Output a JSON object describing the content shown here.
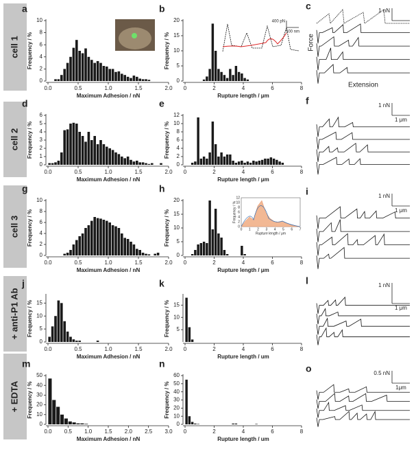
{
  "row_labels": [
    "cell 1",
    "cell 2",
    "cell 3",
    "+ anti-P1 Ab",
    "+ EDTA"
  ],
  "chart_data": [
    {
      "type": "histogram",
      "panel": "a",
      "color": "#1a1a1a",
      "xlabel": "Maximum Adhesion / nN",
      "ylabel": "Frequency / %",
      "bins": [
        0,
        0.05,
        0.1,
        0.15,
        0.2,
        0.25,
        0.3,
        0.35,
        0.4,
        0.45,
        0.5,
        0.55,
        0.6,
        0.65,
        0.7,
        0.75,
        0.8,
        0.85,
        0.9,
        0.95,
        1,
        1.05,
        1.1,
        1.15,
        1.2,
        1.25,
        1.3,
        1.35,
        1.4,
        1.45,
        1.5,
        1.55,
        1.6,
        1.65,
        1.7,
        1.75,
        1.8,
        1.85,
        1.9,
        1.95,
        2
      ],
      "values": [
        0,
        0,
        0.3,
        0.3,
        1,
        2,
        3,
        4,
        5.5,
        6.8,
        5,
        4.6,
        5.4,
        4,
        3.5,
        3,
        3.3,
        3,
        2.5,
        2.4,
        2,
        2,
        1.5,
        1.6,
        1.2,
        1,
        0.7,
        0.5,
        0.9,
        0.7,
        0.4,
        0.3,
        0.3,
        0.2,
        0,
        0,
        0,
        0,
        0,
        0
      ],
      "xlim": [
        0,
        2
      ],
      "ylim": [
        0,
        10
      ],
      "xticks": [
        {
          "value": 0,
          "label": "0.0"
        },
        0.5,
        {
          "value": 1,
          "label": "1.0"
        },
        1.5,
        {
          "value": 2,
          "label": "2.0"
        }
      ],
      "yticks": [
        0,
        2,
        4,
        6,
        8,
        10
      ]
    },
    {
      "type": "histogram",
      "panel": "b",
      "color": "#1a1a1a",
      "xlabel": "Rupture length / μm",
      "ylabel": "Frequency / %",
      "bins": [
        0,
        0.2,
        0.4,
        0.6,
        0.8,
        1,
        1.2,
        1.4,
        1.6,
        1.8,
        2,
        2.2,
        2.4,
        2.6,
        2.8,
        3,
        3.2,
        3.4,
        3.6,
        3.8,
        4,
        4.2,
        4.4,
        4.6,
        4.8,
        5,
        5.2,
        5.4,
        5.6,
        5.8,
        6,
        6.2,
        6.4,
        6.6,
        6.8,
        7,
        7.2,
        7.4,
        7.6,
        7.8,
        8
      ],
      "values": [
        0,
        0,
        0,
        0,
        0,
        0,
        0.5,
        1.5,
        4,
        19,
        10,
        4,
        3,
        2,
        1,
        4,
        2,
        5,
        3,
        2.5,
        1,
        0.5,
        0,
        0,
        0,
        0,
        0,
        0,
        0,
        0,
        0,
        0,
        0,
        0,
        0,
        0,
        0,
        0,
        0,
        0
      ],
      "xlim": [
        0,
        8
      ],
      "ylim": [
        0,
        20
      ],
      "xticks": [
        0,
        2,
        4,
        6,
        8
      ],
      "yticks": [
        0,
        5,
        10,
        15,
        20
      ],
      "inset_labels": [
        "400 pN",
        "500 nm"
      ]
    },
    {
      "type": "histogram",
      "panel": "d",
      "color": "#1a1a1a",
      "xlabel": "Maximum Adhesion / nN",
      "ylabel": "Frequency / %",
      "bins": [
        0,
        0.05,
        0.1,
        0.15,
        0.2,
        0.25,
        0.3,
        0.35,
        0.4,
        0.45,
        0.5,
        0.55,
        0.6,
        0.65,
        0.7,
        0.75,
        0.8,
        0.85,
        0.9,
        0.95,
        1,
        1.05,
        1.1,
        1.15,
        1.2,
        1.25,
        1.3,
        1.35,
        1.4,
        1.45,
        1.5,
        1.55,
        1.6,
        1.65,
        1.7,
        1.75,
        1.8,
        1.85,
        1.9,
        1.95,
        2
      ],
      "values": [
        0.2,
        0.2,
        0.3,
        0.5,
        1.5,
        4.2,
        4.3,
        5,
        5.1,
        5,
        4,
        3.5,
        2.8,
        4,
        3,
        3.5,
        2.5,
        3,
        2.5,
        2.2,
        2,
        1.8,
        1.5,
        1.3,
        1,
        0.8,
        1,
        0.6,
        0.4,
        0.5,
        0.3,
        0.3,
        0.2,
        0.1,
        0.2,
        0,
        0,
        0.2,
        0,
        0
      ],
      "xlim": [
        0,
        2
      ],
      "ylim": [
        0,
        6
      ],
      "xticks": [
        {
          "value": 0,
          "label": "0.0"
        },
        0.5,
        {
          "value": 1,
          "label": "1.0"
        },
        1.5,
        {
          "value": 2,
          "label": "2.0"
        }
      ],
      "yticks": [
        0,
        1,
        2,
        3,
        4,
        5,
        6
      ]
    },
    {
      "type": "histogram",
      "panel": "e",
      "color": "#1a1a1a",
      "xlabel": "Rupture length / μm",
      "ylabel": "Frequency / %",
      "bins": [
        0,
        0.2,
        0.4,
        0.6,
        0.8,
        1,
        1.2,
        1.4,
        1.6,
        1.8,
        2,
        2.2,
        2.4,
        2.6,
        2.8,
        3,
        3.2,
        3.4,
        3.6,
        3.8,
        4,
        4.2,
        4.4,
        4.6,
        4.8,
        5,
        5.2,
        5.4,
        5.6,
        5.8,
        6,
        6.2,
        6.4,
        6.6,
        6.8,
        7,
        7.2,
        7.4,
        7.6,
        7.8,
        8
      ],
      "values": [
        0,
        0,
        0.5,
        0.8,
        11.5,
        1.5,
        2,
        1.5,
        3,
        10.5,
        5,
        2,
        3,
        2,
        2.5,
        2.5,
        1,
        0.5,
        0.8,
        1,
        0.5,
        0.8,
        0.5,
        1,
        0.8,
        1,
        1.2,
        1.5,
        1.5,
        1.8,
        1.5,
        1.2,
        0.8,
        0.5,
        0,
        0,
        0,
        0,
        0,
        0
      ],
      "xlim": [
        0,
        8
      ],
      "ylim": [
        0,
        12
      ],
      "xticks": [
        0,
        2,
        4,
        6,
        8
      ],
      "yticks": [
        0,
        2,
        4,
        6,
        8,
        10,
        12
      ]
    },
    {
      "type": "histogram",
      "panel": "g",
      "color": "#1a1a1a",
      "xlabel": "Maximum Adhesion / nN",
      "ylabel": "Frequency / %",
      "bins": [
        0,
        0.05,
        0.1,
        0.15,
        0.2,
        0.25,
        0.3,
        0.35,
        0.4,
        0.45,
        0.5,
        0.55,
        0.6,
        0.65,
        0.7,
        0.75,
        0.8,
        0.85,
        0.9,
        0.95,
        1,
        1.05,
        1.1,
        1.15,
        1.2,
        1.25,
        1.3,
        1.35,
        1.4,
        1.45,
        1.5,
        1.55,
        1.6,
        1.65,
        1.7,
        1.75,
        1.8,
        1.85,
        1.9,
        1.95,
        2
      ],
      "values": [
        0,
        0,
        0,
        0,
        0,
        0.3,
        0.5,
        1,
        2,
        2.8,
        3.5,
        4,
        5,
        5.5,
        6.3,
        7,
        6.8,
        6.7,
        6.5,
        6.3,
        6,
        5.5,
        5.3,
        5,
        4,
        3.2,
        3,
        2.5,
        2,
        1.2,
        1,
        0.5,
        0.3,
        0.2,
        0,
        0.3,
        0.5,
        0,
        0,
        0
      ],
      "xlim": [
        0,
        2
      ],
      "ylim": [
        0,
        10
      ],
      "xticks": [
        {
          "value": 0,
          "label": "0.0"
        },
        0.5,
        {
          "value": 1,
          "label": "1.0"
        },
        1.5,
        {
          "value": 2,
          "label": "2.0"
        }
      ],
      "yticks": [
        0,
        2,
        4,
        6,
        8,
        10
      ]
    },
    {
      "type": "histogram",
      "panel": "h",
      "color": "#1a1a1a",
      "xlabel": "Rupture length / μm",
      "ylabel": "Frequency / %",
      "bins": [
        0,
        0.2,
        0.4,
        0.6,
        0.8,
        1,
        1.2,
        1.4,
        1.6,
        1.8,
        2,
        2.2,
        2.4,
        2.6,
        2.8,
        3,
        3.2,
        3.4,
        3.6,
        3.8,
        4,
        4.2,
        4.4,
        4.6,
        4.8,
        5,
        5.2,
        5.4,
        5.6,
        5.8,
        6,
        6.2,
        6.4,
        6.6,
        6.8,
        7,
        7.2,
        7.4,
        7.6,
        7.8,
        8
      ],
      "values": [
        0,
        0,
        0.5,
        2,
        4,
        4.5,
        5,
        4.5,
        20,
        9.5,
        17,
        8,
        6.5,
        2,
        0.5,
        0,
        0,
        0,
        0,
        3.5,
        0.5,
        0,
        0,
        0,
        0,
        0,
        0,
        0,
        0,
        0,
        0,
        0,
        0,
        0,
        0,
        0,
        0,
        0,
        0,
        0
      ],
      "xlim": [
        0,
        8
      ],
      "ylim": [
        0,
        20
      ],
      "xticks": [
        0,
        2,
        4,
        6,
        8
      ],
      "yticks": [
        0,
        5,
        10,
        15,
        20
      ],
      "inset": {
        "xlabel": "Rupture length / μm",
        "ylabel": "Frequency / %",
        "xlim": [
          0,
          7
        ],
        "ylim": [
          0,
          12
        ],
        "xticks": [
          0,
          1,
          2,
          3,
          4,
          5,
          6,
          7
        ],
        "yticks": [
          0,
          2,
          4,
          6,
          8,
          10,
          12
        ]
      }
    },
    {
      "type": "histogram",
      "panel": "j",
      "color": "#1a1a1a",
      "xlabel": "Maximum Adhesion / nN",
      "ylabel": "Frequency / %",
      "bins": [
        0,
        0.05,
        0.1,
        0.15,
        0.2,
        0.25,
        0.3,
        0.35,
        0.4,
        0.45,
        0.5,
        0.55,
        0.6,
        0.65,
        0.7,
        0.75,
        0.8,
        0.85,
        0.9,
        0.95,
        1,
        1.05,
        1.1,
        1.15,
        1.2,
        1.25,
        1.3,
        1.35,
        1.4,
        1.45,
        1.5,
        1.55,
        1.6,
        1.65,
        1.7,
        1.75,
        1.8,
        1.85,
        1.9,
        1.95,
        2
      ],
      "values": [
        2,
        6,
        10,
        16,
        15,
        8,
        4,
        2,
        1,
        0.5,
        0.5,
        0,
        0,
        0,
        0,
        0,
        0.5,
        0,
        0,
        0,
        0,
        0,
        0,
        0,
        0,
        0,
        0,
        0,
        0,
        0,
        0,
        0,
        0,
        0,
        0,
        0,
        0,
        0,
        0,
        0
      ],
      "xlim": [
        0,
        2
      ],
      "ylim": [
        0,
        18
      ],
      "xticks": [
        {
          "value": 0,
          "label": "0.0"
        },
        0.5,
        {
          "value": 1,
          "label": "1.0"
        },
        1.5,
        {
          "value": 2,
          "label": "2.0"
        }
      ],
      "yticks": [
        0,
        5,
        10,
        15
      ]
    },
    {
      "type": "histogram",
      "panel": "k",
      "color": "#1a1a1a",
      "xlabel": "Rupture length / um",
      "ylabel": "Frequency / %",
      "bins": [
        0,
        0.2,
        0.4,
        0.6,
        0.8,
        1,
        1.2,
        1.4,
        1.6,
        1.8,
        2,
        2.2,
        2.4,
        2.6,
        2.8,
        3,
        3.2,
        3.4,
        3.6,
        3.8,
        4,
        4.2,
        4.4,
        4.6,
        4.8,
        5,
        5.2,
        5.4,
        5.6,
        5.8,
        6,
        6.2,
        6.4,
        6.6,
        6.8,
        7,
        7.2,
        7.4,
        7.6,
        7.8,
        8
      ],
      "values": [
        18,
        6,
        1,
        0,
        0,
        0,
        0,
        0,
        0,
        0,
        0,
        0,
        0,
        0,
        0,
        0,
        0,
        0,
        0,
        0,
        0,
        0,
        0,
        0,
        0,
        0,
        0,
        0,
        0,
        0,
        0,
        0,
        0,
        0,
        0,
        0,
        0,
        0,
        0,
        0
      ],
      "xlim": [
        0,
        8
      ],
      "ylim": [
        0,
        19
      ],
      "xticks": [
        0,
        2,
        4,
        6,
        8
      ],
      "yticks": [
        5,
        10,
        15
      ]
    },
    {
      "type": "histogram",
      "panel": "m",
      "color": "#1a1a1a",
      "xlabel": "Maximum Adhesion / nN",
      "ylabel": "Frequency / %",
      "bins": [
        0,
        0.1,
        0.2,
        0.3,
        0.4,
        0.5,
        0.6,
        0.7,
        0.8,
        0.9,
        1,
        1.1,
        1.2,
        1.3,
        1.4,
        1.5,
        1.6,
        1.7,
        1.8,
        1.9,
        2,
        2.1,
        2.2,
        2.3,
        2.4,
        2.5,
        2.6,
        2.7,
        2.8,
        2.9,
        3
      ],
      "values": [
        47,
        25,
        18,
        10,
        6,
        3,
        2,
        1,
        1,
        0.5,
        0,
        0,
        0,
        0,
        0,
        0,
        0,
        0,
        0,
        0,
        0,
        0,
        0,
        0,
        0,
        0,
        0,
        0,
        0,
        0
      ],
      "xlim": [
        0,
        3
      ],
      "ylim": [
        0,
        50
      ],
      "xticks": [
        {
          "value": 0,
          "label": "0.0"
        },
        0.5,
        {
          "value": 1,
          "label": "1.0"
        },
        1.5,
        {
          "value": 2,
          "label": "2.0"
        },
        2.5,
        {
          "value": 3,
          "label": "3.0"
        }
      ],
      "yticks": [
        0,
        10,
        20,
        30,
        40,
        50
      ]
    },
    {
      "type": "histogram",
      "panel": "n",
      "color": "#1a1a1a",
      "xlabel": "Rupture length / um",
      "ylabel": "Frequency / %",
      "bins": [
        0,
        0.2,
        0.4,
        0.6,
        0.8,
        1,
        1.2,
        1.4,
        1.6,
        1.8,
        2,
        2.2,
        2.4,
        2.6,
        2.8,
        3,
        3.2,
        3.4,
        3.6,
        3.8,
        4,
        4.2,
        4.4,
        4.6,
        4.8,
        5,
        5.2,
        5.4,
        5.6,
        5.8,
        6,
        6.2,
        6.4,
        6.6,
        6.8,
        7,
        7.2,
        7.4,
        7.6,
        7.8,
        8
      ],
      "values": [
        55,
        10,
        3,
        1,
        0.5,
        0,
        0,
        0,
        0,
        0,
        0,
        0,
        0,
        0,
        0,
        0,
        1,
        1,
        0,
        0,
        0,
        0,
        0,
        0,
        0.5,
        0,
        0,
        0,
        0,
        0,
        0,
        0,
        0,
        0,
        0,
        0,
        0,
        0,
        0,
        0
      ],
      "xlim": [
        0,
        8
      ],
      "ylim": [
        0,
        60
      ],
      "xticks": [
        0,
        2,
        4,
        6,
        8
      ],
      "yticks": [
        0,
        10,
        20,
        30,
        40,
        50,
        60
      ]
    }
  ],
  "traces": [
    {
      "panel": "c",
      "force_scale": "1 nN",
      "ylabel": "Force",
      "xlabel": "Extension"
    },
    {
      "panel": "f",
      "force_scale": "1 nN",
      "length_scale": "1 μm"
    },
    {
      "panel": "i",
      "force_scale": "1 nN",
      "length_scale": "1 μm"
    },
    {
      "panel": "l",
      "force_scale": "1 nN",
      "length_scale": "1 μm"
    },
    {
      "panel": "o",
      "force_scale": "0.5 nN",
      "length_scale": "1μm"
    }
  ]
}
